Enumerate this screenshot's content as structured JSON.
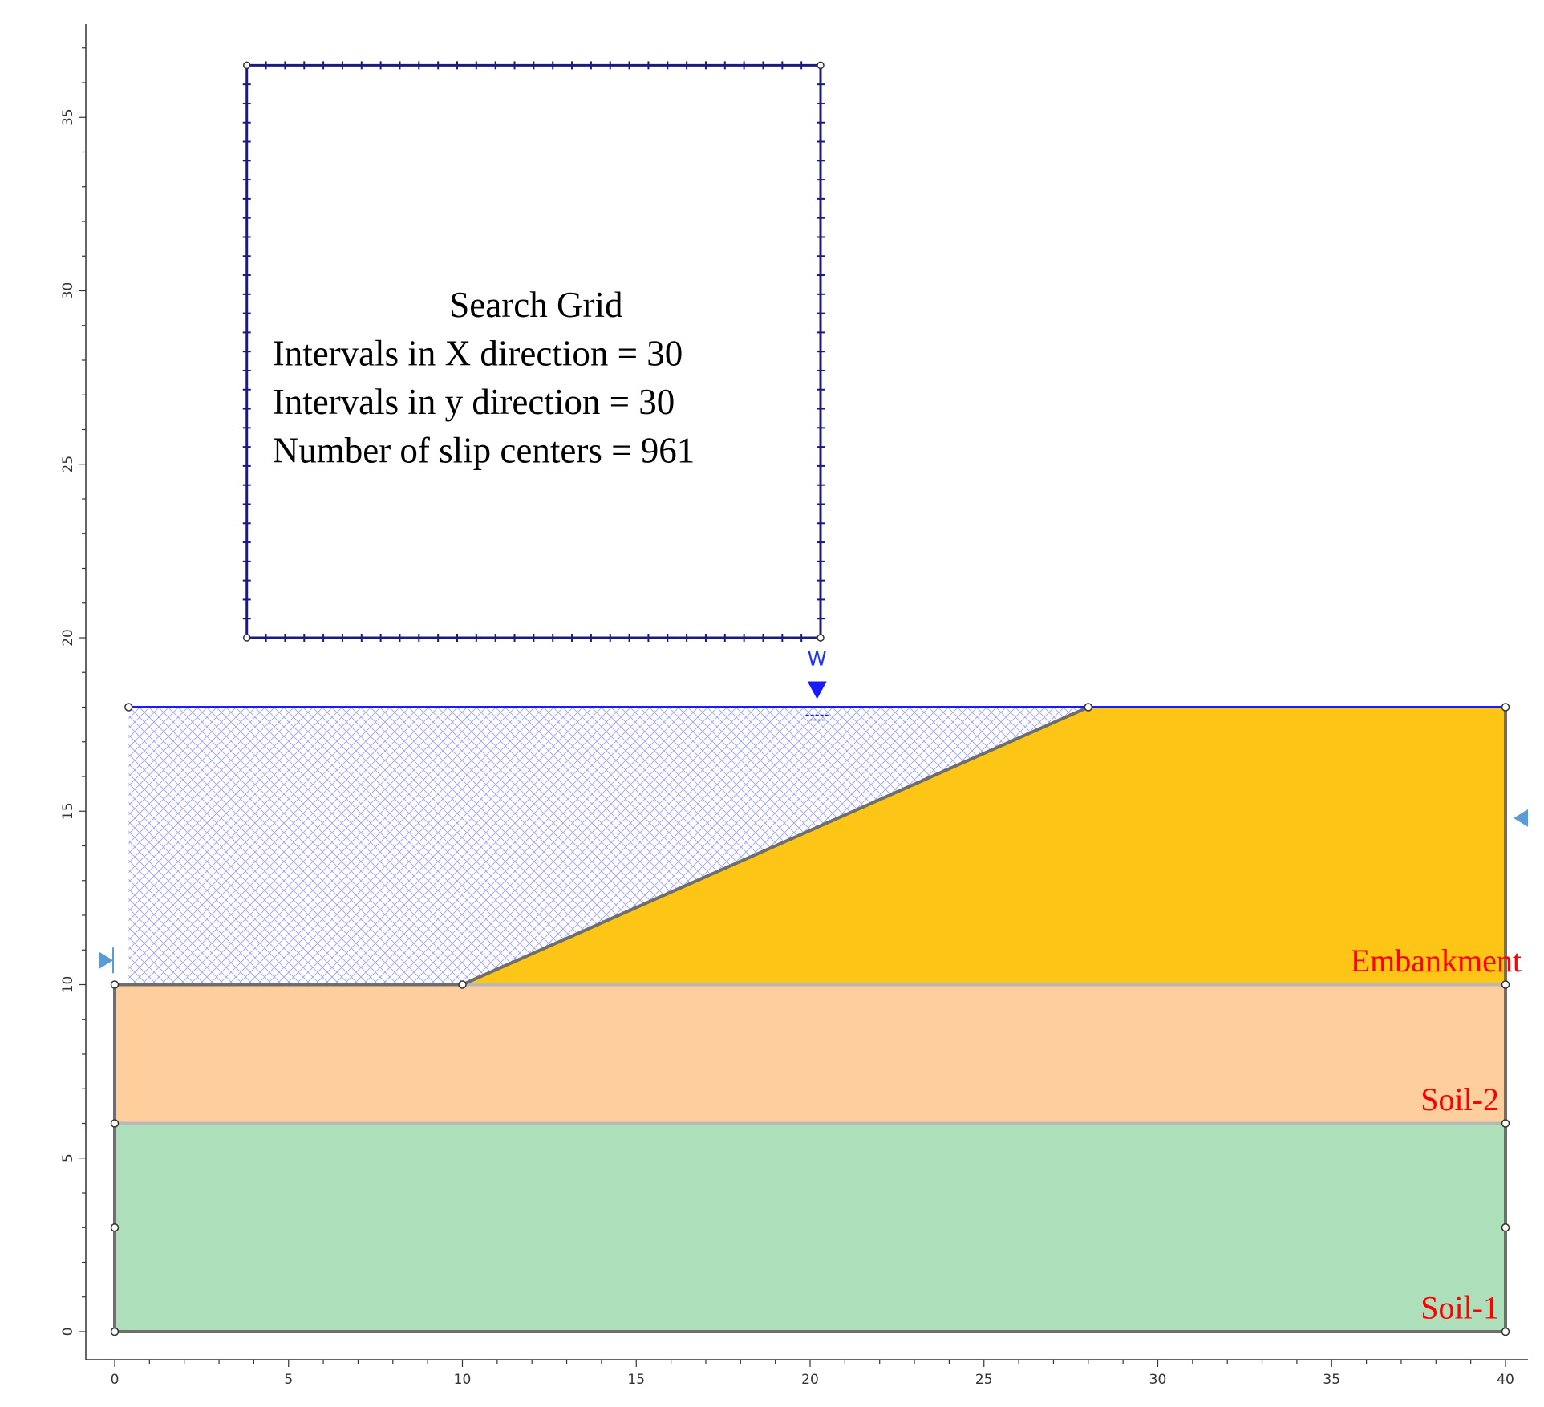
{
  "colors": {
    "embankment": "#fdc515",
    "soil2": "#fecf9c",
    "soil1": "#addfba",
    "grid": "#1a1a80",
    "water": "#1a1aff",
    "hatch": "#9aa0ff",
    "boundary": "#6e6e6e",
    "layer_line": "#b8b8b8",
    "label": "#ff0000",
    "marker": "#5b9bd5"
  },
  "axes": {
    "x": {
      "min": 0,
      "max": 40,
      "ticks": [
        "0",
        "5",
        "10",
        "15",
        "20",
        "25",
        "30",
        "35",
        "40"
      ]
    },
    "y": {
      "min": 0,
      "max": 35,
      "ticks": [
        "0",
        "5",
        "10",
        "15",
        "20",
        "25",
        "30",
        "35"
      ]
    }
  },
  "search_grid": {
    "x_range": [
      3.8,
      20.3
    ],
    "y_range": [
      20,
      36.5
    ],
    "intervals": 30,
    "lines": [
      "Search Grid",
      "Intervals in X direction = 30",
      "Intervals in y direction = 30",
      "Number of slip centers = 961"
    ]
  },
  "water": {
    "label": "W",
    "level_y": 18,
    "marker_x": 20.2,
    "start_x": 0.4
  },
  "geometry": {
    "left_x": 0,
    "right_x": 40,
    "slope_toe": [
      10,
      10
    ],
    "slope_crest": [
      28,
      18
    ],
    "soil2_top": 10,
    "soil1_top": 6,
    "base": 0
  },
  "layers": [
    {
      "name": "Embankment",
      "label_y": 10.7
    },
    {
      "name": "Soil-2",
      "label_y": 6.7
    },
    {
      "name": "Soil-1",
      "label_y": 0.7
    }
  ]
}
